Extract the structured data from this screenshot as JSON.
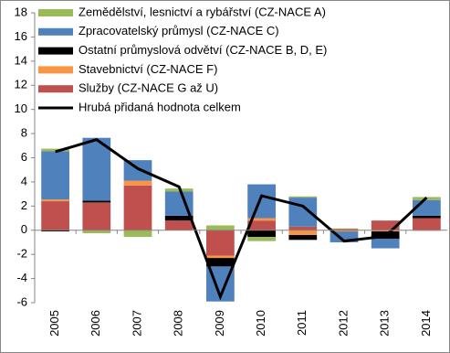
{
  "chart_data": {
    "type": "bar",
    "categories": [
      "2005",
      "2006",
      "2007",
      "2008",
      "2009",
      "2010",
      "2011",
      "2012",
      "2013",
      "2014"
    ],
    "series": [
      {
        "name": "Zemědělství, lesnictví a rybářství (CZ-NACE A)",
        "color": "#9bbb59",
        "values": [
          0.2,
          -0.25,
          -0.55,
          0.25,
          0.4,
          -0.35,
          0.1,
          0.05,
          0,
          0.25
        ]
      },
      {
        "name": "Zpracovatelský průmysl (CZ-NACE C)",
        "color": "#4f81bd",
        "values": [
          4.0,
          5.2,
          1.7,
          2.0,
          -2.9,
          2.8,
          2.4,
          -0.9,
          -0.8,
          1.3
        ]
      },
      {
        "name": "Ostatní průmyslová odvětví (CZ-NACE B, D, E)",
        "color": "#000000",
        "values": [
          -0.1,
          0.15,
          0,
          0.4,
          -0.7,
          -0.55,
          -0.4,
          0,
          -0.6,
          0.2
        ]
      },
      {
        "name": "Stavebnictví (CZ-NACE F)",
        "color": "#f79646",
        "values": [
          0.15,
          0,
          0.4,
          0,
          -0.2,
          0.2,
          -0.4,
          -0.1,
          -0.1,
          -0.05
        ]
      },
      {
        "name": "Služby (CZ-NACE G až U)",
        "color": "#c0504d",
        "values": [
          2.4,
          2.3,
          3.7,
          0.8,
          -2.1,
          0.8,
          0.3,
          0.1,
          0.8,
          1.0
        ]
      },
      {
        "name": "Hrubá přidaná hodnota celkem",
        "color": "#000000",
        "type": "line",
        "values": [
          6.5,
          7.5,
          5.1,
          3.6,
          -5.5,
          2.85,
          2.0,
          -0.9,
          -0.5,
          2.7
        ]
      }
    ],
    "ylim": [
      -6,
      18
    ],
    "yticks": [
      -6,
      -4,
      -2,
      0,
      2,
      4,
      6,
      8,
      10,
      12,
      14,
      16,
      18
    ]
  }
}
